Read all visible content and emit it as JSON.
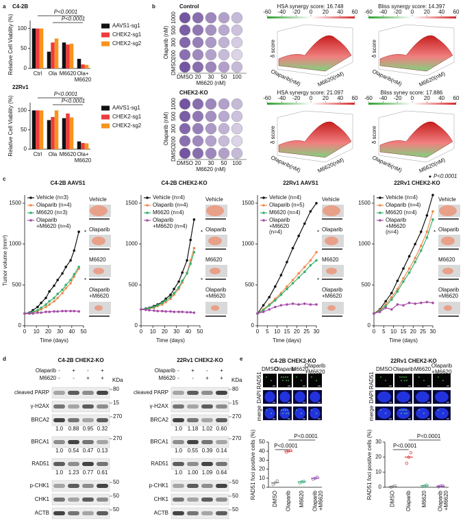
{
  "panel_labels": [
    "a",
    "b",
    "c",
    "d",
    "e"
  ],
  "chart_data": [
    {
      "type": "bar",
      "title": "C4-2B",
      "ylabel": "Relative Cell Viability (%)",
      "categories": [
        "Ctrl",
        "Ola",
        "M6620",
        "Ola+\nM6620"
      ],
      "series": [
        {
          "name": "AAVS1-sg1",
          "color": "#111111",
          "values": [
            100,
            42,
            65,
            24
          ]
        },
        {
          "name": "CHEK2-sg1",
          "color": "#ef3b3b",
          "values": [
            100,
            65,
            60,
            10
          ]
        },
        {
          "name": "CHEK2-sg2",
          "color": "#f7941d",
          "values": [
            100,
            75,
            62,
            9
          ]
        }
      ],
      "ylim": [
        0,
        120
      ],
      "yticks": [
        0,
        50,
        100
      ],
      "annotations": [
        "P<0.0001",
        "P<0.0001"
      ]
    },
    {
      "type": "bar",
      "title": "22Rv1",
      "ylabel": "Relative Cell Viability (%)",
      "categories": [
        "Ctrl",
        "Ola",
        "M6620",
        "Ola+\nM6620"
      ],
      "series": [
        {
          "name": "AAVS1-sg1",
          "color": "#111111",
          "values": [
            100,
            75,
            80,
            20
          ]
        },
        {
          "name": "CHEK2-sg1",
          "color": "#ef3b3b",
          "values": [
            100,
            83,
            92,
            16
          ]
        },
        {
          "name": "CHEK2-sg2",
          "color": "#f7941d",
          "values": [
            100,
            100,
            82,
            15
          ]
        }
      ],
      "ylim": [
        0,
        120
      ],
      "yticks": [
        0,
        50,
        100
      ],
      "annotations": [
        "P<0.0001",
        "P<0.0001"
      ]
    },
    {
      "type": "line",
      "title": "C4-2B AAVS1",
      "xlabel": "Time (days)",
      "ylabel": "Tumor volume (mm³)",
      "x": [
        0,
        4,
        7,
        11,
        14,
        18,
        21,
        25,
        28,
        32,
        35,
        39,
        42,
        46
      ],
      "xlim": [
        0,
        50
      ],
      "xticks": [
        0,
        10,
        20,
        30,
        40,
        50
      ],
      "ylim": [
        0,
        1600
      ],
      "yticks": [
        0,
        500,
        1000,
        1500
      ],
      "series": [
        {
          "name": "Vehicle (n=3)",
          "color": "#111111",
          "values": [
            150,
            160,
            190,
            230,
            280,
            340,
            420,
            490,
            560,
            640,
            720,
            800,
            920,
            1150
          ]
        },
        {
          "name": "Olaparib (n=4)",
          "color": "#f08a4b",
          "values": [
            150,
            150,
            160,
            180,
            200,
            230,
            260,
            300,
            340,
            400,
            460,
            520,
            600,
            700
          ]
        },
        {
          "name": "M6620 (n=3)",
          "color": "#35b06f",
          "values": [
            150,
            155,
            170,
            190,
            220,
            260,
            300,
            340,
            390,
            440,
            500,
            560,
            630,
            720
          ]
        },
        {
          "name": "Olaparib\n+M6620 (n=4)",
          "color": "#a64ca6",
          "values": [
            150,
            150,
            150,
            160,
            160,
            170,
            170,
            175,
            175,
            180,
            180,
            180,
            180,
            175
          ]
        }
      ],
      "photo_labels": [
        "Vehicle",
        "Olaparib",
        "M6620",
        "Olaparib\n+M6620"
      ],
      "annotations": [
        "*",
        "*"
      ]
    },
    {
      "type": "line",
      "title": "C4-2B CHEK2-KO",
      "xlabel": "Time (days)",
      "x": [
        0,
        4,
        7,
        11,
        14,
        18,
        21,
        25,
        28,
        32,
        35,
        39,
        42,
        45
      ],
      "xlim": [
        0,
        50
      ],
      "xticks": [
        0,
        10,
        20,
        30,
        40,
        50
      ],
      "ylim": [
        0,
        1600
      ],
      "yticks": [
        0,
        500,
        1000,
        1500
      ],
      "series": [
        {
          "name": "Vehicle (n=4)",
          "color": "#111111",
          "values": [
            200,
            210,
            220,
            240,
            260,
            290,
            330,
            380,
            450,
            540,
            650,
            800,
            1050,
            1300
          ]
        },
        {
          "name": "Olaparib (n=4)",
          "color": "#f08a4b",
          "values": [
            200,
            200,
            210,
            220,
            240,
            260,
            290,
            330,
            380,
            450,
            530,
            650,
            800,
            950
          ]
        },
        {
          "name": "M6620 (n=4)",
          "color": "#35b06f",
          "values": [
            200,
            205,
            215,
            230,
            250,
            280,
            310,
            350,
            400,
            470,
            550,
            640,
            760,
            900
          ]
        },
        {
          "name": "Olaparib\n+M6620 (n=4)",
          "color": "#a64ca6",
          "values": [
            200,
            195,
            190,
            185,
            180,
            180,
            175,
            175,
            170,
            170,
            170,
            165,
            165,
            160
          ]
        }
      ],
      "photo_labels": [
        "Vehicle",
        "Olaparib",
        "M6620",
        "Olaparib\n+M6620"
      ],
      "annotations": [
        "*",
        "*"
      ]
    },
    {
      "type": "line",
      "title": "22Rv1 AAVS1",
      "xlabel": "Time (days)",
      "x": [
        0,
        3,
        6,
        9,
        12,
        15,
        18,
        21,
        24,
        27,
        30
      ],
      "xlim": [
        0,
        30
      ],
      "xticks": [
        0,
        5,
        10,
        15,
        20,
        25,
        30
      ],
      "ylim": [
        0,
        1600
      ],
      "yticks": [
        0,
        500,
        1000,
        1500
      ],
      "series": [
        {
          "name": "Vehicle (n=4)",
          "color": "#111111",
          "values": [
            150,
            250,
            350,
            480,
            620,
            780,
            950,
            1100,
            1250,
            1400,
            1500
          ]
        },
        {
          "name": "Olaparib (n=5)",
          "color": "#f08a4b",
          "values": [
            150,
            200,
            260,
            330,
            400,
            480,
            560,
            640,
            720,
            800,
            900
          ]
        },
        {
          "name": "M6620 (n=4)",
          "color": "#35b06f",
          "values": [
            150,
            190,
            250,
            310,
            380,
            450,
            520,
            590,
            660,
            740,
            800
          ]
        },
        {
          "name": "Olaparib\n+M6620\n(n=4)",
          "color": "#a64ca6",
          "values": [
            150,
            170,
            200,
            230,
            250,
            260,
            270,
            260,
            270,
            260,
            260
          ]
        }
      ],
      "photo_labels": [
        "Vehicle",
        "Olaparib",
        "M6620",
        "Olaparib\n+M6620"
      ],
      "annotations": [
        "*",
        "*"
      ]
    },
    {
      "type": "line",
      "title": "22Rv1 CHEK2-KO",
      "xlabel": "Time (days)",
      "x": [
        0,
        3,
        6,
        9,
        12,
        15,
        18,
        21,
        24,
        27,
        30
      ],
      "xlim": [
        0,
        30
      ],
      "xticks": [
        0,
        5,
        10,
        15,
        20,
        25,
        30
      ],
      "ylim": [
        0,
        1600
      ],
      "yticks": [
        0,
        500,
        1000,
        1500
      ],
      "series": [
        {
          "name": "Vehicle (n=4)",
          "color": "#111111",
          "values": [
            150,
            200,
            300,
            400,
            550,
            700,
            850,
            1000,
            1150,
            1350,
            1600
          ]
        },
        {
          "name": "Olaparib (n=4)",
          "color": "#f08a4b",
          "values": [
            150,
            190,
            260,
            350,
            450,
            580,
            700,
            830,
            980,
            1150,
            1400
          ]
        },
        {
          "name": "M6620 (n=4)",
          "color": "#35b06f",
          "values": [
            150,
            180,
            240,
            320,
            420,
            540,
            650,
            780,
            920,
            1080,
            1300
          ]
        },
        {
          "name": "Olaparib\n+M6620\n(n=4)",
          "color": "#a64ca6",
          "values": [
            150,
            170,
            220,
            200,
            260,
            250,
            280,
            270,
            280,
            290,
            280
          ]
        }
      ],
      "photo_labels": [
        "Vehicle",
        "Olaparib",
        "M6620",
        "Olaparib\n+M6620"
      ],
      "annotations": [
        "*"
      ],
      "note": "P<0.0001"
    },
    {
      "type": "dot",
      "ylabel": "RAD51 foci positive cells (%)",
      "categories": [
        "DMSO",
        "Olaparib",
        "M6620",
        "Olaparib\n+M6620"
      ],
      "colors": [
        "#888888",
        "#e03a3a",
        "#35a877",
        "#8e44ad"
      ],
      "values": [
        5,
        40,
        6,
        10
      ],
      "points": [
        [
          3,
          5,
          7
        ],
        [
          39,
          40,
          41
        ],
        [
          5,
          6,
          6.5
        ],
        [
          9,
          10,
          11
        ]
      ],
      "ylim": [
        0,
        50
      ],
      "yticks": [
        0,
        10,
        20,
        30,
        40,
        50
      ],
      "annotations": [
        "P<0.0001",
        "P<0.0001"
      ]
    },
    {
      "type": "dot",
      "ylabel": "RAD51 foci positive cells (%)",
      "categories": [
        "DMSO",
        "Olaparib",
        "M6620",
        "Olaparib\n+M6620"
      ],
      "colors": [
        "#888888",
        "#e03a3a",
        "#35a877",
        "#8e44ad"
      ],
      "values": [
        0.5,
        20,
        1,
        0.7
      ],
      "points": [
        [
          0,
          0.5,
          1
        ],
        [
          16,
          20,
          23
        ],
        [
          0.5,
          1,
          1.5
        ],
        [
          0.3,
          0.7,
          1
        ]
      ],
      "ylim": [
        0,
        30
      ],
      "yticks": [
        0,
        10,
        20,
        30
      ],
      "annotations": [
        "P<0.0001",
        "P<0.0001"
      ]
    }
  ],
  "synergy": {
    "colorbar_ticks": [
      -60,
      -40,
      -20,
      0,
      20,
      40,
      60
    ],
    "surface_labels": [
      "Olaparib(nM)",
      "M6620(nM)",
      "δ score"
    ],
    "blocks": [
      {
        "title": "Control",
        "plate_ylabel": "Olaparib (nM)",
        "plate_xlabel": "M6620 (nM)",
        "plate_rows": [
          "1000",
          "500",
          "300",
          "200",
          "DMSO"
        ],
        "plate_cols": [
          "DMSO",
          "20",
          "30",
          "50",
          "100"
        ],
        "scores": [
          "HSA synergy score: 16.748",
          "Bliss synergy score: 14.397"
        ]
      },
      {
        "title": "CHEK2-KO",
        "plate_ylabel": "Olaparib (nM)",
        "plate_xlabel": "M6620 (nM)",
        "plate_rows": [
          "1000",
          "500",
          "300",
          "200",
          "DMSO"
        ],
        "plate_cols": [
          "DMSO",
          "20",
          "30",
          "50",
          "100"
        ],
        "scores": [
          "HSA synergy score: 21.097",
          "Bliss syney score: 17.886"
        ]
      }
    ]
  },
  "blots": [
    {
      "title": "C4-2B CHEK2-KO",
      "unit": "KDa",
      "treatments": [
        {
          "name": "Olaparib",
          "signs": [
            "-",
            "+",
            "-",
            "+"
          ]
        },
        {
          "name": "M6620",
          "signs": [
            "-",
            "-",
            "+",
            "+"
          ]
        }
      ],
      "rows": [
        {
          "label": "cleaved PARP",
          "mw": "80"
        },
        {
          "label": "γ-H2AX",
          "mw": "15"
        },
        {
          "label": "BRCA2",
          "mw": "270",
          "quant": [
            "1.0",
            "0.88",
            "0.95",
            "0.32"
          ]
        },
        {
          "label": "BRCA1",
          "mw": "270",
          "quant": [
            "1.0",
            "0.54",
            "0.47",
            "0.13"
          ]
        },
        {
          "label": "RAD51",
          "quant": [
            "1.0",
            "1.23",
            "0.77",
            "0.61"
          ]
        },
        {
          "label": "p-CHK1",
          "mw": "50"
        },
        {
          "label": "CHK1",
          "mw": "50"
        },
        {
          "label": "ACTB",
          "mw": "50"
        }
      ]
    },
    {
      "title": "22Rv1 CHEK2-KO",
      "unit": "KDa",
      "treatments": [
        {
          "name": "Olaparib",
          "signs": [
            "-",
            "+",
            "-",
            "+"
          ]
        },
        {
          "name": "M6620",
          "signs": [
            "-",
            "-",
            "+",
            "+"
          ]
        }
      ],
      "rows": [
        {
          "label": "cleaved PARP",
          "mw": "80"
        },
        {
          "label": "γ-H2AX",
          "mw": "15"
        },
        {
          "label": "BRCA2",
          "mw": "270",
          "quant": [
            "1.0",
            "1.18",
            "1.02",
            "0.60"
          ]
        },
        {
          "label": "BRCA1",
          "mw": "270",
          "quant": [
            "1.0",
            "0.55",
            "0.39",
            "0.14"
          ]
        },
        {
          "label": "RAD51",
          "quant": [
            "1.0",
            "1.00",
            "1.09",
            "0.64"
          ]
        },
        {
          "label": "p-CHK1",
          "mw": "50"
        },
        {
          "label": "CHK1",
          "mw": "50"
        },
        {
          "label": "ACTB",
          "mw": "50"
        }
      ]
    }
  ],
  "foci": [
    {
      "title": "C4-2B CHEK2-KO",
      "columns": [
        "DMSO",
        "Olaparib",
        "M6620",
        "Olaparib\n+M6620"
      ],
      "rows": [
        "RAD51",
        "DAPI",
        "merge"
      ]
    },
    {
      "title": "22Rv1 CHEK2-KO",
      "columns": [
        "DMSO",
        "Olaparib",
        "M6620",
        "Olaparib\n+M6620"
      ],
      "rows": [
        "RAD51",
        "DAPI",
        "merge"
      ]
    }
  ]
}
